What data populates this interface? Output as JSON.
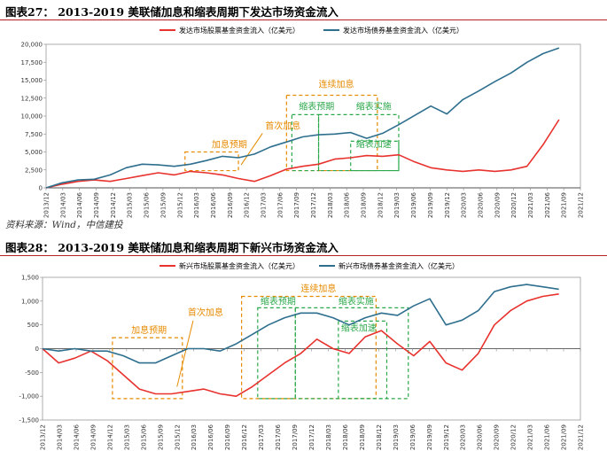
{
  "source_note": "资料来源：Wind，中信建投",
  "colors": {
    "red": "#e8322e",
    "blue": "#2e6f8e",
    "orange": "#e68a00",
    "green": "#2ca84c"
  },
  "chart_data": [
    {
      "type": "line",
      "title": "图表27： 2013-2019 美联储加息和缩表周期下发达市场资金流入",
      "ylim": [
        0,
        20000
      ],
      "yticks": [
        "0",
        "2,500",
        "5,000",
        "7,500",
        "10,000",
        "12,500",
        "15,000",
        "17,500",
        "20,000"
      ],
      "ytick_values": [
        0,
        2500,
        5000,
        7500,
        10000,
        12500,
        15000,
        17500,
        20000
      ],
      "xlim": [
        0,
        100
      ],
      "xticks": [
        "2013/12",
        "2014/03",
        "2014/06",
        "2014/09",
        "2014/12",
        "2015/03",
        "2015/06",
        "2015/09",
        "2015/12",
        "2016/03",
        "2016/06",
        "2016/09",
        "2016/12",
        "2017/03",
        "2017/06",
        "2017/09",
        "2017/12",
        "2018/03",
        "2018/06",
        "2018/09",
        "2018/12",
        "2019/03",
        "2019/06",
        "2019/09",
        "2019/12",
        "2020/03",
        "2020/06",
        "2020/09",
        "2020/12",
        "2021/03",
        "2021/06",
        "2021/09",
        "2021/12"
      ],
      "series": [
        {
          "name": "发达市场股票基金资金流入（亿美元）",
          "color": "#e8322e",
          "x": [
            0,
            3,
            6,
            9,
            12,
            15,
            18,
            21,
            24,
            27,
            30,
            33,
            36,
            39,
            42,
            45,
            48,
            51,
            54,
            57,
            60,
            63,
            66,
            69,
            72,
            75,
            78,
            81,
            84,
            87,
            90,
            93,
            96
          ],
          "values": [
            0,
            500,
            900,
            1100,
            900,
            1300,
            1700,
            2100,
            1800,
            2300,
            2100,
            1800,
            1300,
            900,
            1700,
            2600,
            3000,
            3300,
            4000,
            4200,
            4500,
            4400,
            4600,
            3600,
            2800,
            2500,
            2300,
            2500,
            2300,
            2500,
            3000,
            6000,
            9500
          ]
        },
        {
          "name": "发达市场债券基金资金流入（亿美元）",
          "color": "#2e6f8e",
          "x": [
            0,
            3,
            6,
            9,
            12,
            15,
            18,
            21,
            24,
            27,
            30,
            33,
            36,
            39,
            42,
            45,
            48,
            51,
            54,
            57,
            60,
            63,
            66,
            69,
            72,
            75,
            78,
            81,
            84,
            87,
            90,
            93,
            96
          ],
          "values": [
            0,
            700,
            1100,
            1200,
            1800,
            2800,
            3300,
            3200,
            3000,
            3300,
            3800,
            4400,
            4200,
            4700,
            5700,
            6400,
            7100,
            7400,
            7500,
            7700,
            6900,
            7600,
            8800,
            10100,
            11400,
            10300,
            12300,
            13500,
            14800,
            16000,
            17500,
            18700,
            19500
          ]
        }
      ],
      "annotations": [
        {
          "text": "加息预期",
          "style": "orange"
        },
        {
          "text": "首次加息",
          "style": "orange"
        },
        {
          "text": "连续加息",
          "style": "orange"
        },
        {
          "text": "缩表预期",
          "style": "green"
        },
        {
          "text": "缩表实施",
          "style": "green"
        },
        {
          "text": "缩表加速",
          "style": "green"
        }
      ]
    },
    {
      "type": "line",
      "title": "图表28： 2013-2019 美联储加息和缩表周期下新兴市场资金流入",
      "ylim": [
        -1500,
        1500
      ],
      "yticks": [
        "-1,500",
        "-1,000",
        "-500",
        "0",
        "500",
        "1,000",
        "1,500"
      ],
      "ytick_values": [
        -1500,
        -1000,
        -500,
        0,
        500,
        1000,
        1500
      ],
      "xlim": [
        0,
        100
      ],
      "xticks": [
        "2013/12",
        "2014/03",
        "2014/06",
        "2014/09",
        "2014/12",
        "2015/03",
        "2015/06",
        "2015/09",
        "2015/12",
        "2016/03",
        "2016/06",
        "2016/09",
        "2016/12",
        "2017/03",
        "2017/06",
        "2017/09",
        "2017/12",
        "2018/03",
        "2018/06",
        "2018/09",
        "2018/12",
        "2019/03",
        "2019/06",
        "2019/09",
        "2019/12",
        "2020/03",
        "2020/06",
        "2020/09",
        "2020/12",
        "2021/03",
        "2021/06",
        "2021/09",
        "2021/12"
      ],
      "series": [
        {
          "name": "新兴市场股票基金资金流入（亿美元）",
          "color": "#e8322e",
          "x": [
            0,
            3,
            6,
            9,
            12,
            15,
            18,
            21,
            24,
            27,
            30,
            33,
            36,
            39,
            42,
            45,
            48,
            51,
            54,
            57,
            60,
            63,
            66,
            69,
            72,
            75,
            78,
            81,
            84,
            87,
            90,
            93,
            96
          ],
          "values": [
            0,
            -300,
            -200,
            -50,
            -250,
            -550,
            -850,
            -950,
            -950,
            -900,
            -850,
            -950,
            -1000,
            -800,
            -550,
            -300,
            -100,
            200,
            0,
            -100,
            250,
            380,
            100,
            -150,
            150,
            -300,
            -450,
            -100,
            500,
            800,
            1000,
            1100,
            1150
          ]
        },
        {
          "name": "新兴市场债券基金资金流入（亿美元）",
          "color": "#2e6f8e",
          "x": [
            0,
            3,
            6,
            9,
            12,
            15,
            18,
            21,
            24,
            27,
            30,
            33,
            36,
            39,
            42,
            45,
            48,
            51,
            54,
            57,
            60,
            63,
            66,
            69,
            72,
            75,
            78,
            81,
            84,
            87,
            90,
            93,
            96
          ],
          "values": [
            0,
            -50,
            0,
            -50,
            -50,
            -150,
            -300,
            -300,
            -150,
            0,
            0,
            -50,
            100,
            300,
            500,
            650,
            750,
            750,
            650,
            500,
            650,
            750,
            700,
            900,
            1050,
            500,
            600,
            800,
            1200,
            1300,
            1350,
            1300,
            1250
          ]
        }
      ],
      "annotations": [
        {
          "text": "加息预期",
          "style": "orange"
        },
        {
          "text": "首次加息",
          "style": "orange"
        },
        {
          "text": "连续加息",
          "style": "orange"
        },
        {
          "text": "缩表预期",
          "style": "green"
        },
        {
          "text": "缩表实施",
          "style": "green"
        },
        {
          "text": "缩表加速",
          "style": "green"
        }
      ]
    }
  ]
}
